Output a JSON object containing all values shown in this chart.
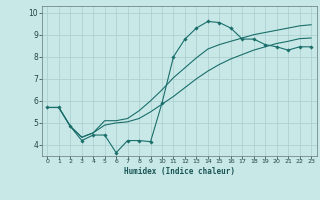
{
  "title": "",
  "xlabel": "Humidex (Indice chaleur)",
  "xlim": [
    -0.5,
    23.5
  ],
  "ylim": [
    3.5,
    10.3
  ],
  "xticks": [
    0,
    1,
    2,
    3,
    4,
    5,
    6,
    7,
    8,
    9,
    10,
    11,
    12,
    13,
    14,
    15,
    16,
    17,
    18,
    19,
    20,
    21,
    22,
    23
  ],
  "yticks": [
    4,
    5,
    6,
    7,
    8,
    9,
    10
  ],
  "bg_color": "#c8e8e8",
  "line_color": "#1a6e6a",
  "grid_color": "#aacccc",
  "line1_x": [
    0,
    1,
    2,
    3,
    4,
    5,
    6,
    7,
    8,
    9,
    10,
    11,
    12,
    13,
    14,
    15,
    16,
    17,
    18,
    19,
    20,
    21,
    22,
    23
  ],
  "line1_y": [
    5.7,
    5.7,
    4.85,
    4.2,
    4.45,
    4.45,
    3.65,
    4.2,
    4.2,
    4.15,
    5.9,
    8.0,
    8.8,
    9.3,
    9.6,
    9.55,
    9.3,
    8.8,
    8.8,
    8.55,
    8.45,
    8.3,
    8.45,
    8.45
  ],
  "line2_x": [
    0,
    1,
    2,
    3,
    4,
    5,
    6,
    7,
    8,
    9,
    10,
    11,
    12,
    13,
    14,
    15,
    16,
    17,
    18,
    19,
    20,
    21,
    22,
    23
  ],
  "line2_y": [
    5.7,
    5.7,
    4.85,
    4.35,
    4.55,
    5.1,
    5.1,
    5.2,
    5.55,
    6.0,
    6.5,
    7.05,
    7.5,
    7.95,
    8.35,
    8.55,
    8.7,
    8.85,
    9.0,
    9.1,
    9.2,
    9.3,
    9.4,
    9.45
  ],
  "line3_x": [
    0,
    1,
    2,
    3,
    4,
    5,
    6,
    7,
    8,
    9,
    10,
    11,
    12,
    13,
    14,
    15,
    16,
    17,
    18,
    19,
    20,
    21,
    22,
    23
  ],
  "line3_y": [
    5.7,
    5.7,
    4.85,
    4.35,
    4.55,
    4.9,
    5.0,
    5.05,
    5.2,
    5.5,
    5.85,
    6.2,
    6.6,
    7.0,
    7.35,
    7.65,
    7.9,
    8.1,
    8.3,
    8.45,
    8.6,
    8.7,
    8.82,
    8.85
  ]
}
